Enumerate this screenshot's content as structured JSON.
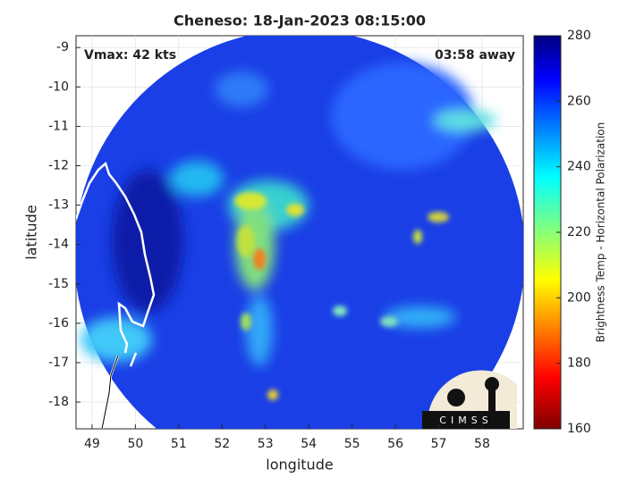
{
  "map": {
    "title": "Cheneso: 18-Jan-2023 08:15:00",
    "left_note": "Vmax: 42 kts",
    "right_note": "03:58 away",
    "xlabel": "longitude",
    "ylabel": "latitude",
    "xlim": [
      48.63,
      58.95
    ],
    "xticks": [
      49,
      50,
      51,
      52,
      53,
      54,
      55,
      56,
      57,
      58
    ],
    "ylim": [
      -18.68,
      -8.7
    ],
    "yticks": [
      -9,
      -10,
      -11,
      -12,
      -13,
      -14,
      -15,
      -16,
      -17,
      -18
    ],
    "colorbar": {
      "label": "Brightness Temp - Horizontal Polarization",
      "lim": [
        160,
        280
      ],
      "ticks": [
        160,
        180,
        200,
        220,
        240,
        260,
        280
      ]
    },
    "logo": "CIMSS"
  }
}
